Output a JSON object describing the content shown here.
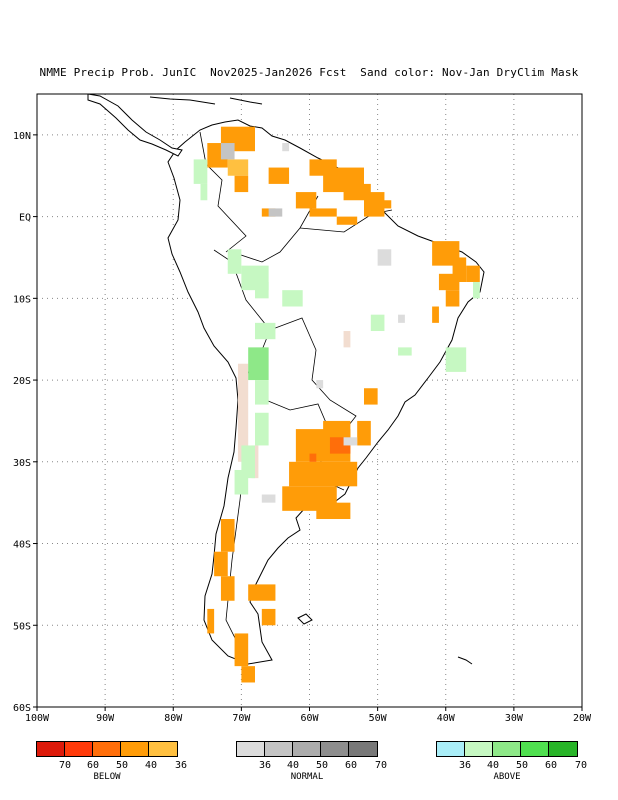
{
  "title": "NMME Precip Prob. JunIC  Nov2025-Jan2026 Fcst  Sand color: Nov-Jan DryClim Mask",
  "map": {
    "lon_range": [
      -100,
      -20
    ],
    "lat_range": [
      -60,
      15
    ],
    "x_ticks": [
      "100W",
      "90W",
      "80W",
      "70W",
      "60W",
      "50W",
      "40W",
      "30W",
      "20W"
    ],
    "y_ticks": [
      "10N",
      "EQ",
      "10S",
      "20S",
      "30S",
      "40S",
      "50S",
      "60S"
    ],
    "grid": "dotted",
    "land_fill": "#ffffff",
    "dry_mask_color": "#f2ddd0"
  },
  "legends": [
    {
      "caption": "BELOW",
      "colors": [
        "#dd1a0a",
        "#ff3a0a",
        "#ff6e0a",
        "#ff9c08",
        "#ffc040"
      ],
      "labels": [
        "70",
        "60",
        "50",
        "40",
        "36"
      ]
    },
    {
      "caption": "NORMAL",
      "colors": [
        "#dcdcdc",
        "#c4c4c4",
        "#acacac",
        "#8e8e8e",
        "#787878"
      ],
      "labels": [
        "36",
        "40",
        "50",
        "60",
        "70"
      ]
    },
    {
      "caption": "ABOVE",
      "colors": [
        "#aaeef8",
        "#c6f8c2",
        "#8ee888",
        "#50e050",
        "#28b428"
      ],
      "labels": [
        "36",
        "40",
        "50",
        "60",
        "70"
      ]
    }
  ]
}
